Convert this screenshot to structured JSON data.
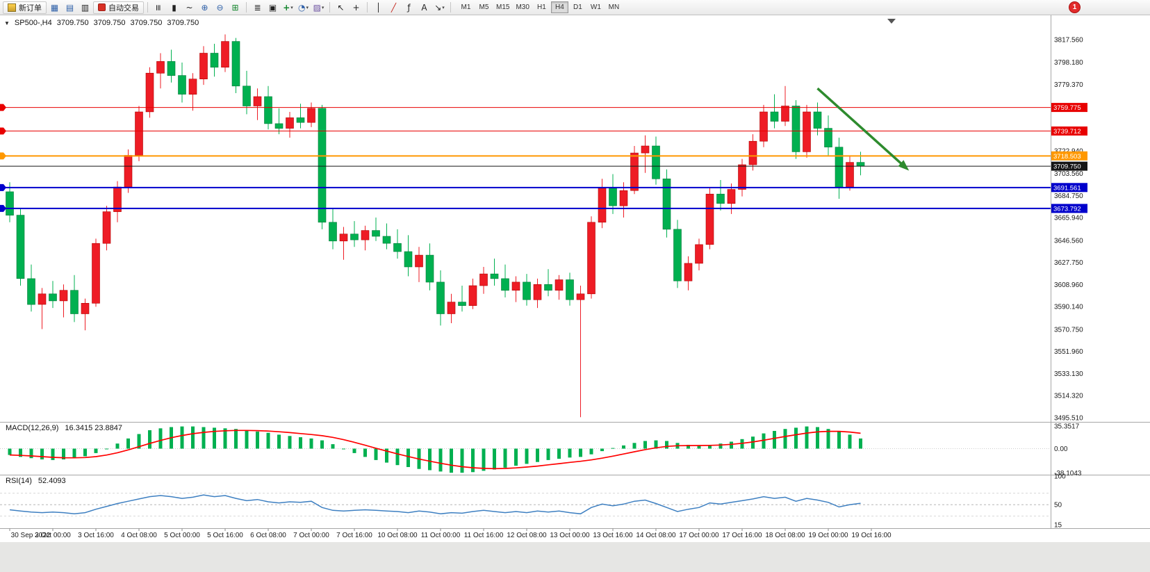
{
  "toolbar": {
    "new_order_label": "新订单",
    "autotrading_label": "自动交易",
    "timeframes": [
      "M1",
      "M5",
      "M15",
      "M30",
      "H1",
      "H4",
      "D1",
      "W1",
      "MN"
    ],
    "active_timeframe": "H4",
    "notification_count": "1",
    "glyphs": {
      "expand": "▼",
      "charts": "▦",
      "profiles": "▤",
      "terminal": "▥",
      "bars": "≡",
      "candles": "▮",
      "line_chart": "~",
      "zoom_in": "⊕",
      "zoom_out": "⊖",
      "tile_windows": "⊞",
      "indicators_list": "≣",
      "data_window": "▣",
      "add_indicator": "+",
      "periods": "◔",
      "templates": "▨",
      "cursor": "↖",
      "crosshair": "+",
      "vertical_line": "│",
      "trendline": "╱",
      "fibonacci": "ƒ",
      "text_tool": "A",
      "arrows_tool": "↘",
      "caret": "▾"
    }
  },
  "chart_header": {
    "expand_glyph": "▼",
    "symbol_period": "SP500-,H4",
    "open": "3709.750",
    "high": "3709.750",
    "low": "3709.750",
    "close": "3709.750"
  },
  "chart_data": {
    "type": "candlestick",
    "symbol": "SP500-",
    "timeframe": "H4",
    "price_range": [
      3495.51,
      3817.56
    ],
    "grid": "off",
    "x_labels": [
      "30 Sep 2022",
      "3 Oct 00:00",
      "3 Oct 16:00",
      "4 Oct 08:00",
      "5 Oct 00:00",
      "5 Oct 16:00",
      "6 Oct 08:00",
      "7 Oct 00:00",
      "7 Oct 16:00",
      "10 Oct 08:00",
      "11 Oct 00:00",
      "11 Oct 16:00",
      "12 Oct 08:00",
      "13 Oct 00:00",
      "13 Oct 16:00",
      "14 Oct 08:00",
      "17 Oct 00:00",
      "17 Oct 16:00",
      "18 Oct 08:00",
      "19 Oct 00:00",
      "19 Oct 16:00"
    ],
    "y_axis_labels": [
      "3817.560",
      "3798.180",
      "3779.370",
      "3722.940",
      "3703.560",
      "3684.750",
      "3665.940",
      "3646.560",
      "3627.750",
      "3608.960",
      "3590.140",
      "3570.750",
      "3551.960",
      "3533.130",
      "3514.320",
      "3495.510"
    ],
    "colors": {
      "up": "#ee1c25",
      "up_border": "#b00000",
      "down": "#00b050",
      "down_border": "#007a38"
    },
    "candles": [
      [
        3688,
        3696,
        3662,
        3668
      ],
      [
        3668,
        3674,
        3608,
        3614
      ],
      [
        3614,
        3626,
        3586,
        3592
      ],
      [
        3592,
        3606,
        3571,
        3601
      ],
      [
        3601,
        3612,
        3589,
        3595
      ],
      [
        3595,
        3609,
        3581,
        3604
      ],
      [
        3604,
        3617,
        3577,
        3584
      ],
      [
        3584,
        3597,
        3570,
        3593
      ],
      [
        3593,
        3648,
        3590,
        3644
      ],
      [
        3644,
        3676,
        3638,
        3671
      ],
      [
        3671,
        3697,
        3662,
        3692
      ],
      [
        3692,
        3724,
        3687,
        3719
      ],
      [
        3719,
        3761,
        3714,
        3756
      ],
      [
        3756,
        3794,
        3751,
        3789
      ],
      [
        3789,
        3806,
        3776,
        3799
      ],
      [
        3799,
        3809,
        3781,
        3787
      ],
      [
        3787,
        3798,
        3764,
        3771
      ],
      [
        3771,
        3789,
        3757,
        3784
      ],
      [
        3784,
        3812,
        3779,
        3806
      ],
      [
        3806,
        3814,
        3786,
        3794
      ],
      [
        3794,
        3822,
        3790,
        3816
      ],
      [
        3816,
        3819,
        3772,
        3778
      ],
      [
        3778,
        3791,
        3754,
        3761
      ],
      [
        3761,
        3776,
        3749,
        3769
      ],
      [
        3769,
        3778,
        3741,
        3746
      ],
      [
        3746,
        3759,
        3737,
        3742
      ],
      [
        3742,
        3756,
        3734,
        3751
      ],
      [
        3751,
        3763,
        3742,
        3747
      ],
      [
        3747,
        3764,
        3743,
        3759
      ],
      [
        3759,
        3762,
        3656,
        3662
      ],
      [
        3662,
        3674,
        3639,
        3646
      ],
      [
        3646,
        3658,
        3630,
        3652
      ],
      [
        3652,
        3663,
        3641,
        3647
      ],
      [
        3647,
        3659,
        3638,
        3655
      ],
      [
        3655,
        3666,
        3646,
        3650
      ],
      [
        3650,
        3661,
        3639,
        3644
      ],
      [
        3644,
        3656,
        3631,
        3637
      ],
      [
        3637,
        3651,
        3616,
        3624
      ],
      [
        3624,
        3641,
        3611,
        3634
      ],
      [
        3634,
        3644,
        3604,
        3611
      ],
      [
        3611,
        3621,
        3574,
        3584
      ],
      [
        3584,
        3601,
        3576,
        3594
      ],
      [
        3594,
        3608,
        3586,
        3591
      ],
      [
        3591,
        3614,
        3588,
        3608
      ],
      [
        3608,
        3624,
        3601,
        3618
      ],
      [
        3618,
        3631,
        3608,
        3614
      ],
      [
        3614,
        3626,
        3598,
        3604
      ],
      [
        3604,
        3616,
        3594,
        3611
      ],
      [
        3611,
        3618,
        3591,
        3596
      ],
      [
        3596,
        3614,
        3589,
        3609
      ],
      [
        3609,
        3622,
        3599,
        3604
      ],
      [
        3604,
        3617,
        3596,
        3613
      ],
      [
        3613,
        3619,
        3591,
        3596
      ],
      [
        3596,
        3608,
        3496,
        3601
      ],
      [
        3601,
        3667,
        3597,
        3662
      ],
      [
        3662,
        3699,
        3657,
        3691
      ],
      [
        3691,
        3703,
        3669,
        3676
      ],
      [
        3676,
        3696,
        3666,
        3689
      ],
      [
        3689,
        3727,
        3686,
        3721
      ],
      [
        3721,
        3736,
        3704,
        3727
      ],
      [
        3727,
        3735,
        3694,
        3699
      ],
      [
        3699,
        3707,
        3649,
        3656
      ],
      [
        3656,
        3664,
        3606,
        3612
      ],
      [
        3612,
        3633,
        3604,
        3627
      ],
      [
        3627,
        3648,
        3621,
        3643
      ],
      [
        3643,
        3691,
        3639,
        3686
      ],
      [
        3686,
        3698,
        3672,
        3678
      ],
      [
        3678,
        3695,
        3669,
        3690
      ],
      [
        3690,
        3716,
        3684,
        3711
      ],
      [
        3711,
        3737,
        3706,
        3731
      ],
      [
        3731,
        3762,
        3726,
        3756
      ],
      [
        3756,
        3771,
        3742,
        3748
      ],
      [
        3748,
        3778,
        3744,
        3761
      ],
      [
        3761,
        3766,
        3716,
        3722
      ],
      [
        3722,
        3762,
        3717,
        3756
      ],
      [
        3756,
        3764,
        3736,
        3742
      ],
      [
        3742,
        3753,
        3719,
        3726
      ],
      [
        3726,
        3734,
        3682,
        3692
      ],
      [
        3692,
        3719,
        3689,
        3713
      ],
      [
        3713,
        3722,
        3702,
        3709.75
      ]
    ],
    "levels": [
      {
        "price": 3759.775,
        "label": "3759.775",
        "color": "#e80000",
        "width": 1
      },
      {
        "price": 3739.712,
        "label": "3739.712",
        "color": "#e80000",
        "width": 1
      },
      {
        "price": 3718.503,
        "label": "3718.503",
        "color": "#ff9800",
        "width": 2
      },
      {
        "price": 3691.561,
        "label": "3691.561",
        "color": "#0000cc",
        "width": 2
      },
      {
        "price": 3673.792,
        "label": "3673.792",
        "color": "#0000cc",
        "width": 2
      }
    ],
    "current_price": {
      "price": 3709.75,
      "label": "3709.750",
      "color": "#151515"
    },
    "annotation_arrow": {
      "from": {
        "index": 75,
        "price": 3776
      },
      "to": {
        "index": 83.5,
        "price": 3706
      },
      "color": "#2e8b2e"
    },
    "indicators": {
      "macd": {
        "name": "MACD(12,26,9)",
        "values": "16.3415 23.8847",
        "axis_labels": [
          "35.3517",
          "0.00",
          "-38.1043"
        ],
        "hist_color": "#00b050",
        "signal_color": "#ff0000",
        "histogram": [
          -10,
          -13,
          -15,
          -17,
          -18,
          -17,
          -15,
          -12,
          -7,
          0,
          8,
          16,
          23,
          29,
          32,
          34,
          35,
          35,
          34,
          33,
          32,
          31,
          29,
          27,
          25,
          22,
          20,
          18,
          16,
          13,
          7,
          0,
          -7,
          -13,
          -18,
          -22,
          -26,
          -29,
          -32,
          -34,
          -36,
          -38,
          -38,
          -37,
          -35,
          -33,
          -30,
          -27,
          -24,
          -21,
          -18,
          -16,
          -14,
          -13,
          -9,
          -4,
          1,
          5,
          9,
          12,
          13,
          12,
          9,
          6,
          5,
          6,
          8,
          11,
          15,
          19,
          24,
          28,
          31,
          33,
          35,
          34,
          31,
          27,
          22,
          16
        ]
      },
      "rsi": {
        "name": "RSI(14)",
        "value": "52.4093",
        "axis_labels": [
          "100",
          "50",
          "15"
        ],
        "line_color": "#3d7fc1",
        "values": [
          41,
          39,
          37,
          36,
          37,
          36,
          34,
          36,
          42,
          47,
          52,
          56,
          60,
          64,
          66,
          64,
          61,
          63,
          67,
          64,
          66,
          61,
          57,
          59,
          55,
          53,
          55,
          54,
          56,
          45,
          40,
          39,
          40,
          41,
          40,
          39,
          38,
          36,
          39,
          37,
          34,
          36,
          35,
          38,
          40,
          38,
          36,
          38,
          36,
          39,
          37,
          39,
          36,
          34,
          45,
          51,
          48,
          51,
          56,
          58,
          52,
          45,
          38,
          42,
          45,
          53,
          51,
          54,
          57,
          60,
          64,
          61,
          63,
          56,
          61,
          58,
          54,
          46,
          50,
          52.4
        ]
      }
    }
  }
}
